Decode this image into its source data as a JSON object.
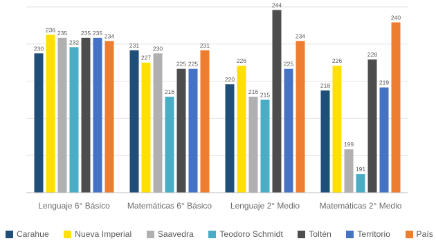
{
  "chart_data": {
    "type": "bar",
    "categories": [
      "Lenguaje 6° Básico",
      "Matemáticas 6° Básico",
      "Lenguaje 2° Medio",
      "Matemáticas 2° Medio"
    ],
    "series": [
      {
        "name": "Carahue",
        "color": "#1f4e79",
        "values": [
          230,
          231,
          220,
          218
        ]
      },
      {
        "name": "Nueva Imperial",
        "color": "#ffe000",
        "values": [
          236,
          227,
          226,
          226
        ]
      },
      {
        "name": "Saavedra",
        "color": "#b0b0b0",
        "values": [
          235,
          230,
          216,
          199
        ]
      },
      {
        "name": "Teodoro Schmidt",
        "color": "#4bacc6",
        "values": [
          232,
          216,
          215,
          191
        ]
      },
      {
        "name": "Toltén",
        "color": "#4d4d4d",
        "values": [
          235,
          225,
          244,
          228
        ]
      },
      {
        "name": "Territorio",
        "color": "#4472c4",
        "values": [
          235,
          225,
          225,
          219
        ]
      },
      {
        "name": "País",
        "color": "#ed7d31",
        "values": [
          234,
          231,
          234,
          240
        ]
      }
    ],
    "ylim": [
      185,
      245
    ],
    "grid": true,
    "legend_position": "bottom"
  }
}
